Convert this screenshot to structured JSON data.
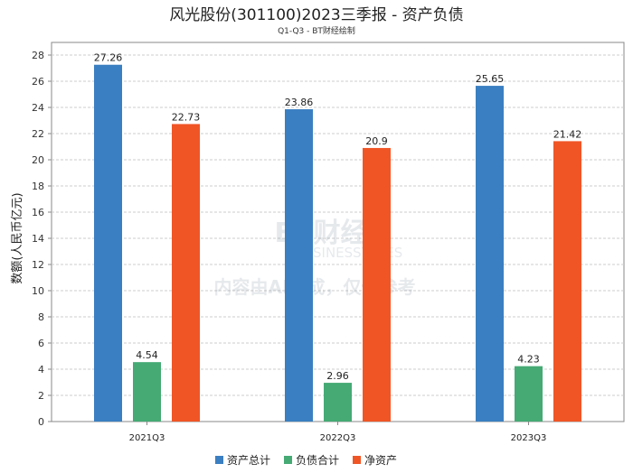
{
  "chart_data": {
    "type": "bar",
    "title": "风光股份(301100)2023三季报 - 资产负债",
    "subtitle": "Q1-Q3 - BT财经绘制",
    "xlabel": "",
    "ylabel": "数额(人民币亿元)",
    "ylim": [
      0,
      28
    ],
    "yticks": [
      0,
      2,
      4,
      6,
      8,
      10,
      12,
      14,
      16,
      18,
      20,
      22,
      24,
      26,
      28
    ],
    "grid": true,
    "legend_position": "bottom",
    "categories": [
      "2021Q3",
      "2022Q3",
      "2023Q3"
    ],
    "series": [
      {
        "name": "资产总计",
        "color": "#3a7fc1",
        "values": [
          27.26,
          23.86,
          25.65
        ],
        "labels": [
          "27.26",
          "23.86",
          "25.65"
        ]
      },
      {
        "name": "负债合计",
        "color": "#45aa74",
        "values": [
          4.54,
          2.96,
          4.23
        ],
        "labels": [
          "4.54",
          "2.96",
          "4.23"
        ]
      },
      {
        "name": "净资产",
        "color": "#f05526",
        "values": [
          22.73,
          20.9,
          21.42
        ],
        "labels": [
          "22.73",
          "20.9",
          "21.42"
        ]
      }
    ],
    "watermark": {
      "brand": "BT财经",
      "brand_en": "BUSINESSTIMES",
      "note": "内容由AI生成，仅供参考"
    }
  }
}
